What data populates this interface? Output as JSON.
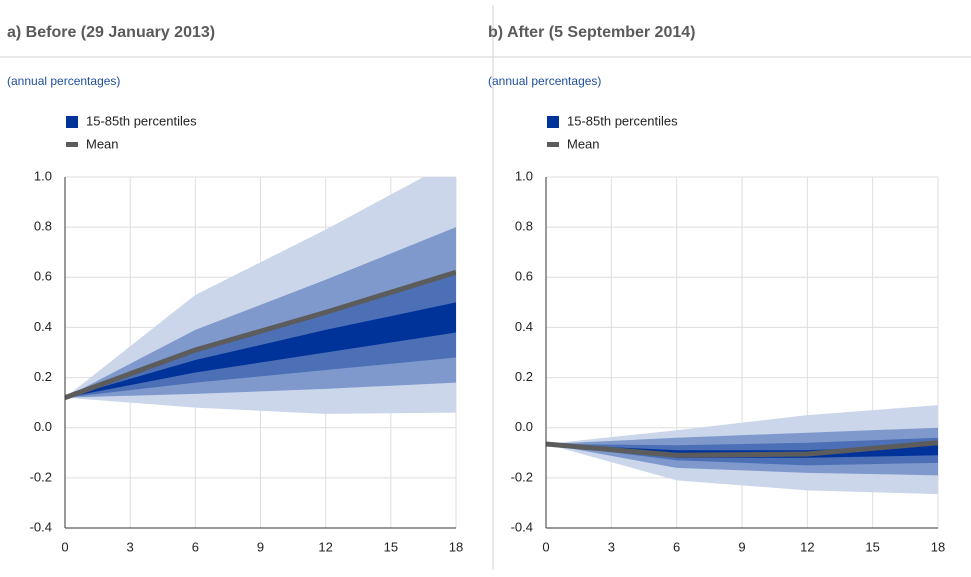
{
  "chart_data": [
    {
      "type": "fan",
      "title": "a) Before (29 January 2013)",
      "subtitle": "(annual percentages)",
      "legend": [
        {
          "name": "15-85th percentiles",
          "color": "#003399"
        },
        {
          "name": "Mean",
          "color": "#5c5c5c"
        }
      ],
      "x": [
        0,
        6,
        12,
        18
      ],
      "bands": [
        {
          "color": "#ccd6eb",
          "lower": [
            0.12,
            0.08,
            0.055,
            0.06
          ],
          "upper": [
            0.12,
            0.53,
            0.79,
            1.07
          ]
        },
        {
          "color": "#7f99cc",
          "lower": [
            0.12,
            0.135,
            0.155,
            0.18
          ],
          "upper": [
            0.12,
            0.39,
            0.59,
            0.8
          ]
        },
        {
          "color": "#4c6fb6",
          "lower": [
            0.12,
            0.18,
            0.23,
            0.28
          ],
          "upper": [
            0.12,
            0.31,
            0.47,
            0.62
          ]
        },
        {
          "color": "#003399",
          "lower": [
            0.12,
            0.22,
            0.3,
            0.38
          ],
          "upper": [
            0.12,
            0.27,
            0.39,
            0.5
          ]
        }
      ],
      "mean": {
        "color": "#5c5c5c",
        "values": [
          0.12,
          0.31,
          0.46,
          0.62
        ]
      },
      "xlim": [
        0,
        18
      ],
      "xticks": [
        0,
        3,
        6,
        9,
        12,
        15,
        18
      ],
      "ylim": [
        -0.4,
        1.0
      ],
      "yticks": [
        {
          "value": 1.0,
          "label": "1.0"
        },
        0.8,
        0.6,
        0.4,
        0.2,
        {
          "value": 0.0,
          "label": "0.0"
        },
        -0.2,
        -0.4
      ],
      "grid": true
    },
    {
      "type": "fan",
      "title": "b) After (5 September 2014)",
      "subtitle": "(annual percentages)",
      "legend": [
        {
          "name": "15-85th percentiles",
          "color": "#003399"
        },
        {
          "name": "Mean",
          "color": "#5c5c5c"
        }
      ],
      "x": [
        0,
        6,
        12,
        18
      ],
      "bands": [
        {
          "color": "#ccd6eb",
          "lower": [
            -0.065,
            -0.21,
            -0.25,
            -0.265
          ],
          "upper": [
            -0.065,
            -0.01,
            0.05,
            0.09
          ]
        },
        {
          "color": "#7f99cc",
          "lower": [
            -0.065,
            -0.16,
            -0.18,
            -0.19
          ],
          "upper": [
            -0.065,
            -0.04,
            -0.02,
            0.0
          ]
        },
        {
          "color": "#4c6fb6",
          "lower": [
            -0.065,
            -0.13,
            -0.15,
            -0.14
          ],
          "upper": [
            -0.065,
            -0.07,
            -0.06,
            -0.04
          ]
        },
        {
          "color": "#003399",
          "lower": [
            -0.065,
            -0.12,
            -0.12,
            -0.11
          ],
          "upper": [
            -0.065,
            -0.09,
            -0.09,
            -0.07
          ]
        }
      ],
      "mean": {
        "color": "#5c5c5c",
        "values": [
          -0.065,
          -0.11,
          -0.105,
          -0.06
        ]
      },
      "xlim": [
        0,
        18
      ],
      "xticks": [
        0,
        3,
        6,
        9,
        12,
        15,
        18
      ],
      "ylim": [
        -0.4,
        1.0
      ],
      "yticks": [
        {
          "value": 1.0,
          "label": "1.0"
        },
        0.8,
        0.6,
        0.4,
        0.2,
        {
          "value": 0.0,
          "label": "0.0"
        },
        -0.2,
        -0.4
      ],
      "grid": true
    }
  ]
}
